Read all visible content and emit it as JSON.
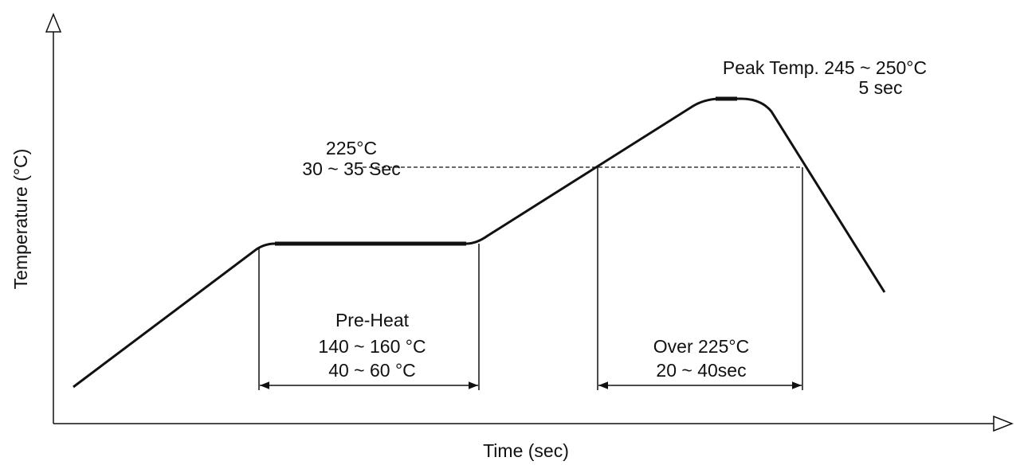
{
  "axes": {
    "x_label": "Time (sec)",
    "y_label": "Temperature (°C)"
  },
  "annotations": {
    "peak": [
      "Peak Temp. 245 ~ 250°C",
      "5 sec"
    ],
    "liquidus": [
      "225°C",
      "30 ~ 35 Sec"
    ],
    "preheat": [
      "Pre-Heat",
      "140 ~ 160 °C",
      "40 ~ 60 °C"
    ],
    "over": [
      "Over 225°C",
      "20 ~ 40sec"
    ]
  }
}
